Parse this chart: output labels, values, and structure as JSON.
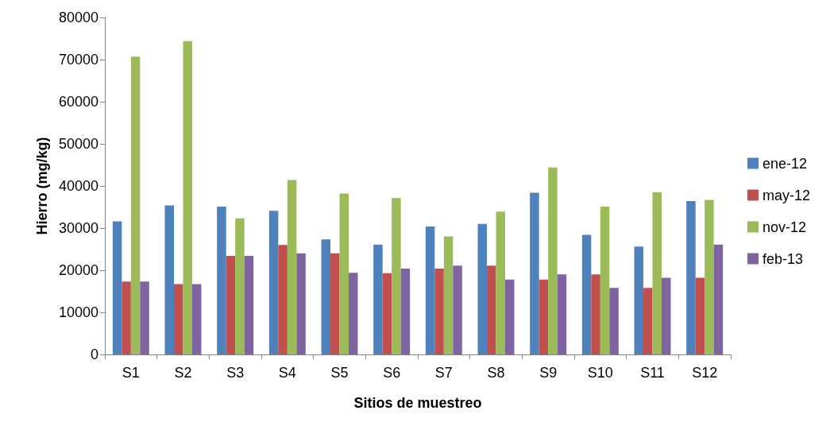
{
  "chart_data": {
    "type": "bar",
    "xlabel": "Sitios de muestreo",
    "ylabel": "Hierro (mg/kg)",
    "categories": [
      "S1",
      "S2",
      "S3",
      "S4",
      "S5",
      "S6",
      "S7",
      "S8",
      "S9",
      "S10",
      "S11",
      "S12"
    ],
    "series": [
      {
        "name": "ene-12",
        "color": "#4f81bd",
        "values": [
          31600,
          35400,
          35100,
          34100,
          27300,
          26100,
          30400,
          31000,
          38400,
          28400,
          25600,
          36400
        ]
      },
      {
        "name": "may-12",
        "color": "#c0504d",
        "values": [
          17300,
          16700,
          23400,
          26000,
          24000,
          19300,
          20400,
          21100,
          17800,
          19000,
          15800,
          18200
        ]
      },
      {
        "name": "nov-12",
        "color": "#9bbb59",
        "values": [
          70700,
          74400,
          32300,
          41400,
          38200,
          37100,
          28000,
          33900,
          44400,
          35100,
          38500,
          36700
        ]
      },
      {
        "name": "feb-13",
        "color": "#8064a2",
        "values": [
          17300,
          16700,
          23400,
          24000,
          19400,
          20400,
          21100,
          17800,
          19000,
          15800,
          18200,
          26100
        ]
      }
    ],
    "ylim": [
      0,
      80000
    ],
    "yticks": [
      0,
      10000,
      20000,
      30000,
      40000,
      50000,
      60000,
      70000,
      80000
    ],
    "grid": false,
    "legend": "right"
  }
}
